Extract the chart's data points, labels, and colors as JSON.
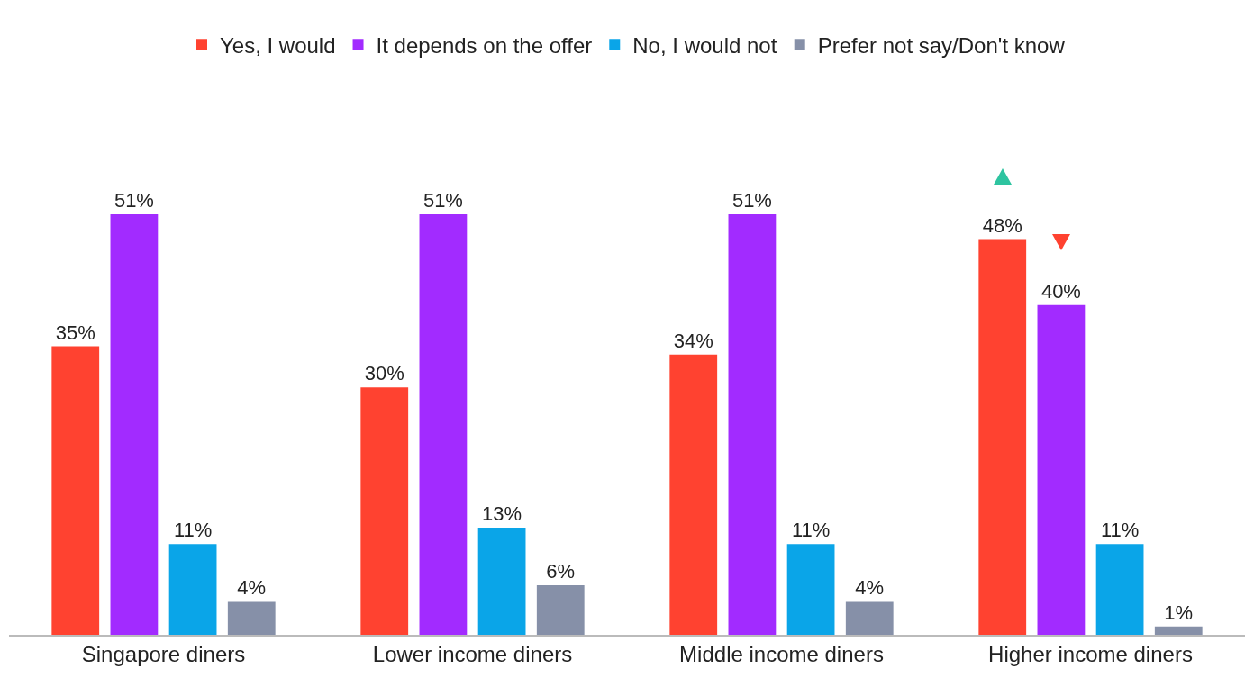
{
  "chart_data": {
    "type": "bar",
    "categories": [
      "Singapore diners",
      "Lower income diners",
      "Middle income diners",
      "Higher income diners"
    ],
    "series": [
      {
        "name": "Yes, I would",
        "color": "#ff4230",
        "values": [
          35,
          30,
          34,
          48
        ],
        "value_labels": [
          "35%",
          "30%",
          "34%",
          "48%"
        ]
      },
      {
        "name": "It depends on the offer",
        "color": "#a22bff",
        "values": [
          51,
          51,
          51,
          40
        ],
        "value_labels": [
          "51%",
          "51%",
          "51%",
          "40%"
        ]
      },
      {
        "name": "No, I would not",
        "color": "#0aa5e8",
        "values": [
          11,
          13,
          11,
          11
        ],
        "value_labels": [
          "11%",
          "13%",
          "11%",
          "11%"
        ]
      },
      {
        "name": "Prefer not say/Don't know",
        "color": "#8690a8",
        "values": [
          4,
          6,
          4,
          1
        ],
        "value_labels": [
          "4%",
          "6%",
          "4%",
          "1%"
        ]
      }
    ],
    "legend": "top",
    "grid": false
  }
}
